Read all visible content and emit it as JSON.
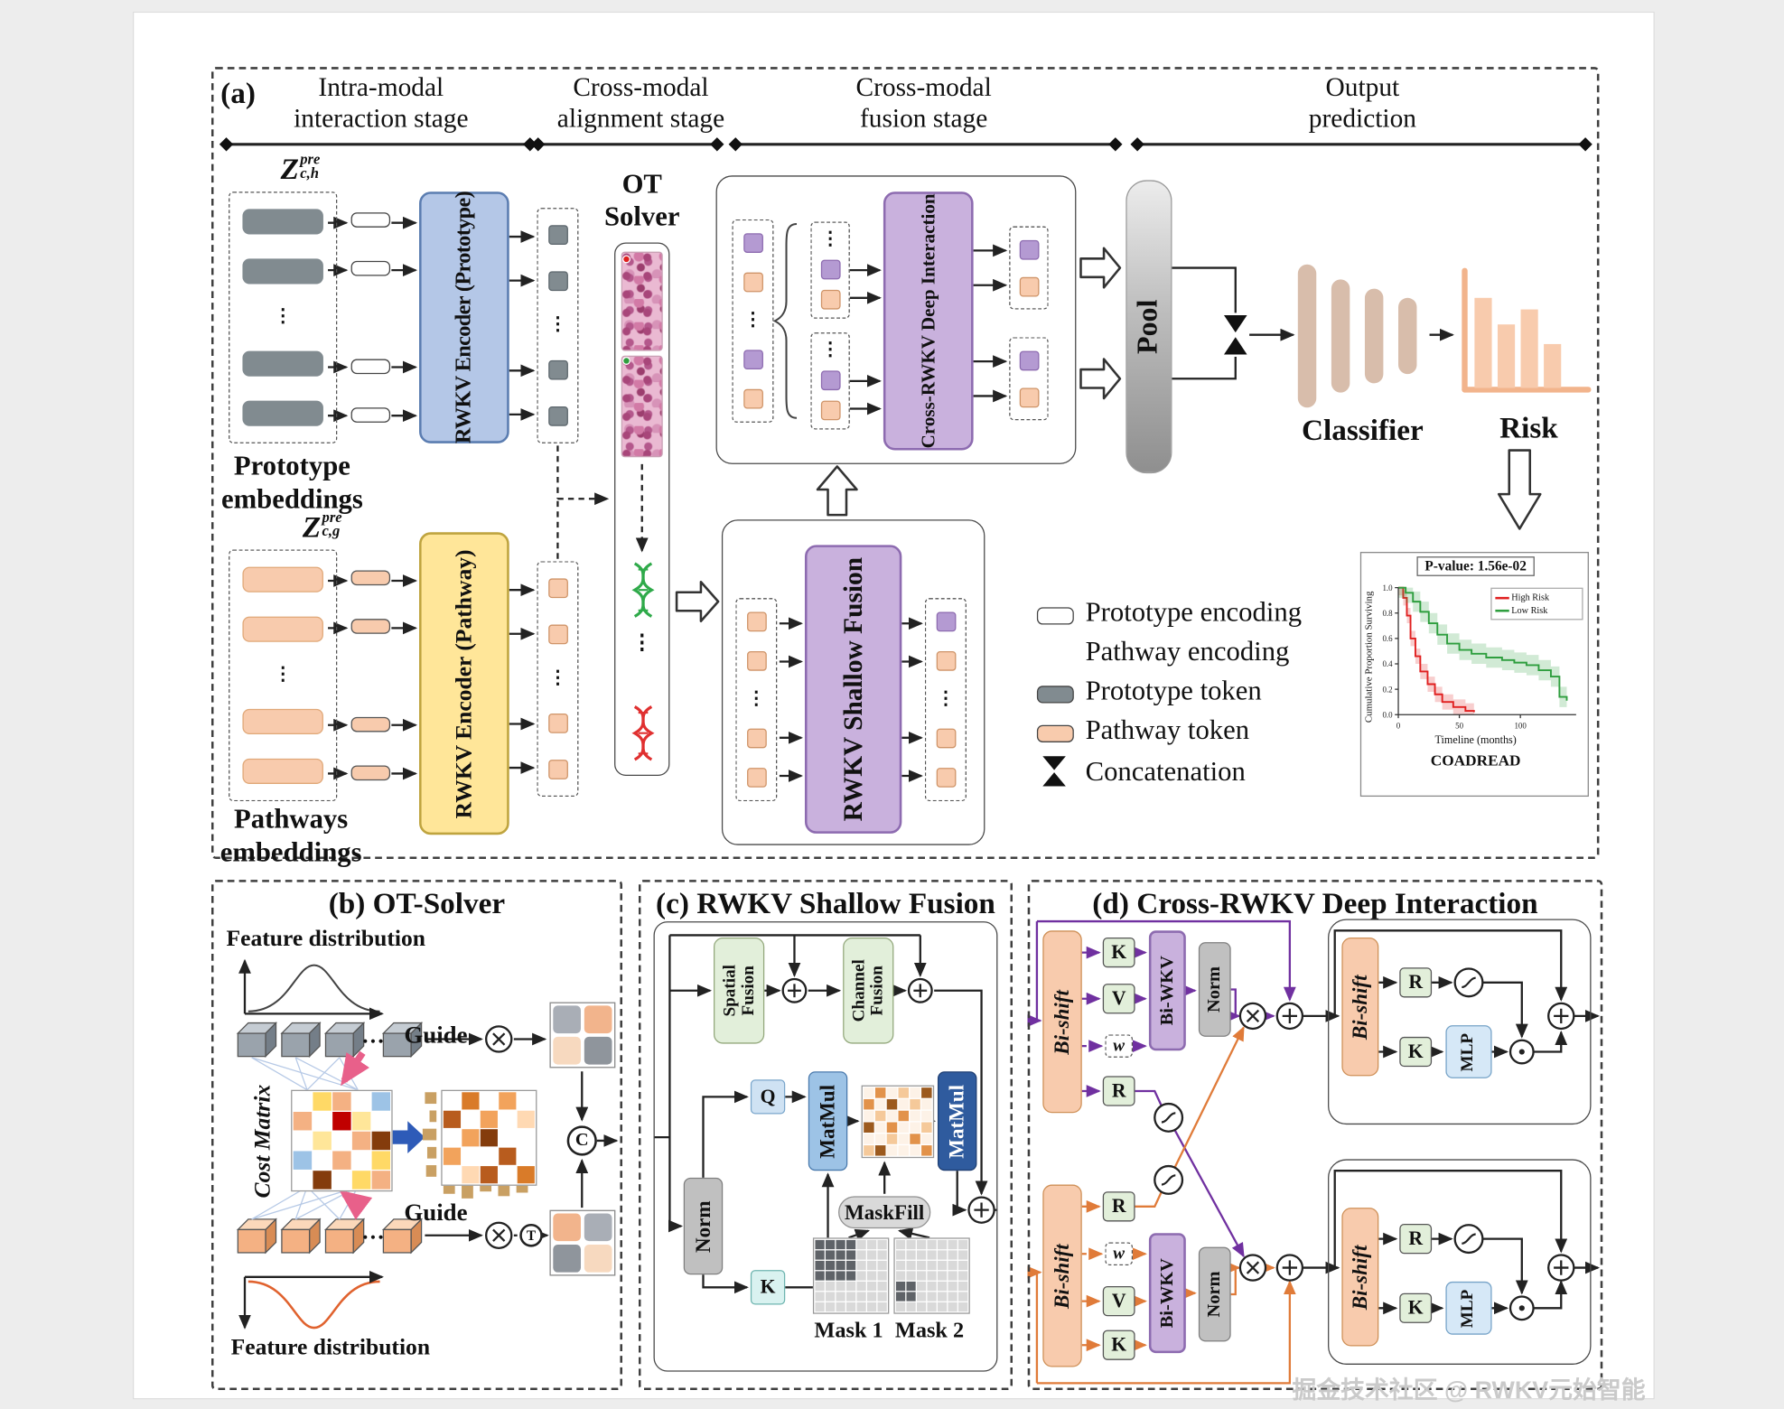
{
  "colors": {
    "encoder_prototype_fill": "#b4c7e7",
    "encoder_prototype_border": "#5b7db1",
    "encoder_pathway_fill": "#ffe699",
    "encoder_pathway_border": "#bfa43f",
    "purple_fill": "#c9b1dd",
    "purple_border": "#8d6bb0",
    "token_gray": "#818b90",
    "token_orange": "#f8cbad",
    "token_purple": "#b49ad2",
    "classifier_bar": "#d8bdab",
    "risk_bar": "#f8cbad",
    "risk_axis": "#f2b48c",
    "km_high": "#e02020",
    "km_low": "#2e9e3e",
    "wire_purple": "#7030a0",
    "wire_orange": "#e07b39",
    "green_box_fill": "#e2efda",
    "matmul1_fill": "#9dc3e6",
    "matmul2_fill": "#2f5b9e",
    "norm_fill": "#c0c0c0",
    "maskfill_fill": "#d9d9d9",
    "bishift_fill": "#f8cbad",
    "mlp_fill": "#d6e8f7",
    "dna_green": "#2faa4a",
    "dna_red": "#e03030"
  },
  "watermark": "掘金技术社区 @ RWKV元始智能",
  "misc": {
    "vdots": "⋮",
    "hdots": "…"
  },
  "panel_a": {
    "tag": "(a)",
    "stages": [
      {
        "line1": "Intra-modal",
        "line2": "interaction stage"
      },
      {
        "line1": "Cross-modal",
        "line2": "alignment stage"
      },
      {
        "line1": "Cross-modal",
        "line2": "fusion stage"
      },
      {
        "line1": "Output",
        "line2": "prediction"
      }
    ],
    "proto_var": {
      "base": "Z",
      "sup": "pre",
      "sub": "c,h"
    },
    "path_var": {
      "base": "Z",
      "sup": "pre",
      "sub": "c,g"
    },
    "prototype_caption": {
      "line1": "Prototype",
      "line2": "embeddings"
    },
    "pathways_caption": {
      "line1": "Pathways",
      "line2": "embeddings"
    },
    "encoder_prototype": "RWKV Encoder (Prototype)",
    "encoder_pathway": "RWKV Encoder (Pathway)",
    "ot_solver": {
      "line1": "OT",
      "line2": "Solver"
    },
    "shallow_fusion_label": "RWKV Shallow Fusion",
    "deep_interaction_label": "Cross-RWKV Deep Interaction",
    "pool_label": "Pool",
    "classifier_label": "Classifier",
    "risk_label": "Risk",
    "classifier_bars": [
      124,
      98,
      82,
      66
    ],
    "risk_bars": [
      78,
      55,
      68,
      38
    ],
    "legend": {
      "prototype_encoding": "Prototype encoding",
      "pathway_encoding": "Pathway encoding",
      "prototype_token": "Prototype token",
      "pathway_token": "Pathway token",
      "concatenation": "Concatenation"
    },
    "km": {
      "title": "P-value: 1.56e-02",
      "legend_high": "High Risk",
      "legend_low": "Low Risk",
      "ylabel": "Cumulative Proportion Surviving",
      "xlabel": "Timeline (months)",
      "dataset": "COADREAD",
      "xticks": [
        "0",
        "50",
        "100"
      ],
      "yticks": [
        "1.0",
        "0.8",
        "0.6",
        "0.4",
        "0.2",
        "0.0"
      ],
      "xmax": 140,
      "series": {
        "high": {
          "x": [
            0,
            4,
            7,
            10,
            14,
            18,
            24,
            30,
            36,
            45,
            55,
            62
          ],
          "y": [
            1,
            0.92,
            0.78,
            0.6,
            0.46,
            0.34,
            0.24,
            0.16,
            0.1,
            0.06,
            0.03,
            0.02
          ]
        },
        "low": {
          "x": [
            0,
            6,
            12,
            18,
            25,
            32,
            40,
            50,
            60,
            72,
            85,
            95,
            105,
            115,
            125,
            132,
            138
          ],
          "y": [
            1,
            0.96,
            0.89,
            0.81,
            0.72,
            0.63,
            0.56,
            0.51,
            0.48,
            0.45,
            0.43,
            0.41,
            0.39,
            0.35,
            0.3,
            0.14,
            0.11
          ]
        }
      }
    }
  },
  "panel_b": {
    "title": "(b) OT-Solver",
    "feature_top": "Feature distribution",
    "feature_bottom": "Feature distribution",
    "cost_matrix": "Cost Matrix",
    "guide": "Guide",
    "c": "C",
    "t": "T"
  },
  "panel_c": {
    "title": "(c) RWKV Shallow Fusion",
    "spatial": "Spatial Fusion",
    "channel": "Channel Fusion",
    "norm": "Norm",
    "q": "Q",
    "k": "K",
    "matmul": "MatMul",
    "maskfill": "MaskFill",
    "mask1": "Mask 1",
    "mask2": "Mask 2"
  },
  "panel_d": {
    "title": "(d) Cross-RWKV Deep Interaction",
    "bishift": "Bi-shift",
    "biwkv": "Bi-WKV",
    "norm": "Norm",
    "k": "K",
    "v": "V",
    "w": "w",
    "r": "R",
    "mlp": "MLP"
  },
  "tokens": {
    "proto_emb": [
      "gpill",
      "gpill",
      "vdots",
      "gpill",
      "gpill"
    ],
    "proto_tok": [
      "wtok",
      "wtok",
      "blank",
      "wtok",
      "wtok"
    ],
    "proto_out": [
      "gsq",
      "gsq",
      "vdots",
      "gsq",
      "gsq"
    ],
    "path_emb": [
      "opill",
      "opill",
      "vdots",
      "opill",
      "opill"
    ],
    "path_tok": [
      "otok",
      "otok",
      "blank",
      "otok",
      "otok"
    ],
    "path_out": [
      "osq",
      "osq",
      "vdots",
      "osq",
      "osq"
    ],
    "sf_in": [
      "osq",
      "osq",
      "vdots",
      "osq",
      "osq"
    ],
    "sf_out": [
      "psq",
      "osq",
      "vdots",
      "osq",
      "osq"
    ],
    "di_in": [
      "psq",
      "osq",
      "vdots",
      "psq",
      "osq"
    ],
    "di_g1": [
      "vdots",
      "psq",
      "osq"
    ],
    "di_g2": [
      "vdots",
      "psq",
      "osq"
    ],
    "di_o1": [
      "psq",
      "osq"
    ],
    "di_o2": [
      "psq",
      "osq"
    ]
  },
  "grids": {
    "cost": [
      [
        "#ffffff",
        "#ffd966",
        "#f4b183",
        "#ffffff",
        "#9dc3e6"
      ],
      [
        "#f4b183",
        "#ffffff",
        "#c00000",
        "#ffe699",
        "#ffffff"
      ],
      [
        "#ffffff",
        "#ffe699",
        "#ffffff",
        "#f4b183",
        "#843c0c"
      ],
      [
        "#9dc3e6",
        "#ffffff",
        "#f4b183",
        "#ffffff",
        "#ffd966"
      ],
      [
        "#ffffff",
        "#843c0c",
        "#ffffff",
        "#ffd966",
        "#f4b183"
      ]
    ],
    "plan": [
      [
        "#ffffff",
        "#d97b29",
        "#ffffff",
        "#f2a35c",
        "#ffffff"
      ],
      [
        "#b85c1e",
        "#ffffff",
        "#f2a35c",
        "#ffffff",
        "#ffd9b3"
      ],
      [
        "#ffffff",
        "#f2a35c",
        "#843c0c",
        "#ffffff",
        "#ffffff"
      ],
      [
        "#f2a35c",
        "#ffffff",
        "#ffffff",
        "#b85c1e",
        "#ffffff"
      ],
      [
        "#ffffff",
        "#ffd9b3",
        "#b85c1e",
        "#ffffff",
        "#d97b29"
      ]
    ],
    "quad_top": [
      [
        "#a9aeb6",
        "#f2b48c"
      ],
      [
        "#f7d9bf",
        "#8f959c"
      ]
    ],
    "quad_bottom": [
      [
        "#f2b48c",
        "#a9aeb6"
      ],
      [
        "#8f959c",
        "#f7d9bf"
      ]
    ],
    "attn": [
      [
        "#fdf2e7",
        "#e2924a",
        "#fdf2e7",
        "#f5c99a",
        "#fdf2e7",
        "#9c5a1e"
      ],
      [
        "#e2924a",
        "#fdf2e7",
        "#9c5a1e",
        "#fdf2e7",
        "#f5c99a",
        "#fdf2e7"
      ],
      [
        "#fdf2e7",
        "#f5c99a",
        "#fdf2e7",
        "#e2924a",
        "#fdf2e7",
        "#fdf2e7"
      ],
      [
        "#9c5a1e",
        "#fdf2e7",
        "#e2924a",
        "#fdf2e7",
        "#fdf2e7",
        "#f5c99a"
      ],
      [
        "#fdf2e7",
        "#fdf2e7",
        "#f5c99a",
        "#fdf2e7",
        "#e2924a",
        "#fdf2e7"
      ],
      [
        "#f5c99a",
        "#9c5a1e",
        "#fdf2e7",
        "#fdf2e7",
        "#fdf2e7",
        "#e2924a"
      ]
    ],
    "mask1": [
      [
        1,
        1,
        1,
        1,
        0,
        0,
        0
      ],
      [
        1,
        1,
        1,
        1,
        0,
        0,
        0
      ],
      [
        1,
        1,
        1,
        1,
        0,
        0,
        0
      ],
      [
        1,
        1,
        1,
        1,
        0,
        0,
        0
      ],
      [
        0,
        0,
        0,
        0,
        0,
        0,
        0
      ],
      [
        0,
        0,
        0,
        0,
        0,
        0,
        0
      ],
      [
        0,
        0,
        0,
        0,
        0,
        0,
        0
      ]
    ],
    "mask2": [
      [
        0,
        0,
        0,
        0,
        0,
        0,
        0
      ],
      [
        0,
        0,
        0,
        0,
        0,
        0,
        0
      ],
      [
        0,
        0,
        0,
        0,
        0,
        0,
        0
      ],
      [
        0,
        0,
        0,
        0,
        0,
        0,
        0
      ],
      [
        1,
        1,
        0,
        0,
        0,
        0,
        0
      ],
      [
        1,
        1,
        0,
        0,
        0,
        0,
        0
      ],
      [
        0,
        0,
        0,
        0,
        0,
        0,
        0
      ]
    ]
  }
}
